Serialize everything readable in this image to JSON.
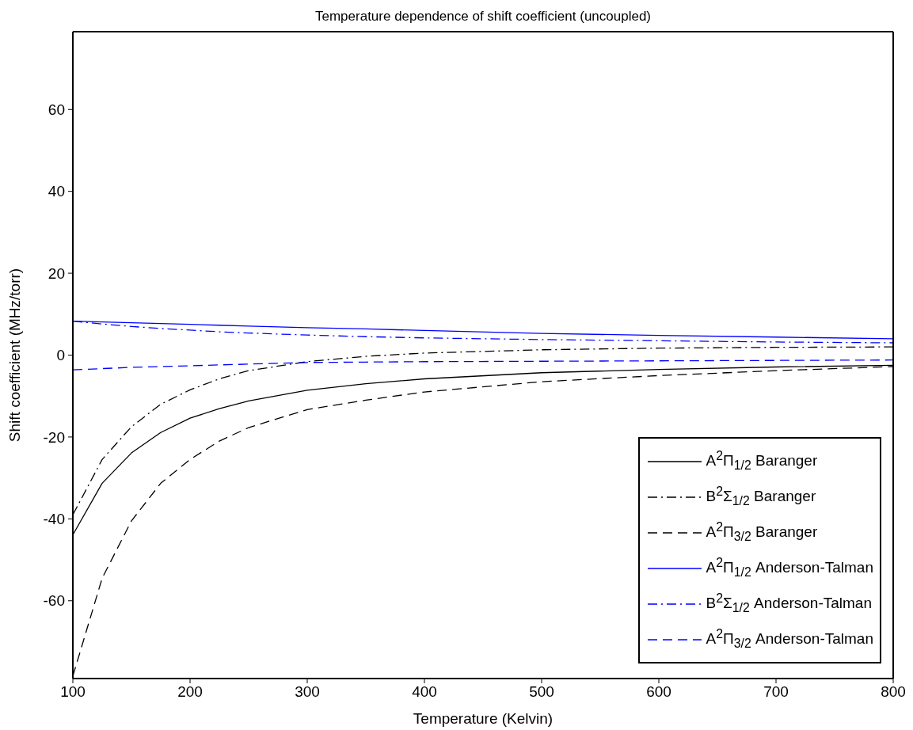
{
  "chart_data": {
    "type": "line",
    "title": "Temperature dependence of shift coefficient (uncoupled)",
    "xlabel": "Temperature (Kelvin)",
    "ylabel": "Shift coefficient (MHz/torr)",
    "x": [
      100,
      125,
      150,
      175,
      200,
      225,
      250,
      300,
      350,
      400,
      500,
      600,
      700,
      800
    ],
    "series": [
      {
        "name": "A$^{2}$Π$_{1/2}$ Baranger",
        "color": "#000000",
        "line_style": "solid",
        "values": [
          -43.9,
          -31.3,
          -23.9,
          -18.9,
          -15.4,
          -13.1,
          -11.2,
          -8.6,
          -7.0,
          -5.8,
          -4.3,
          -3.5,
          -2.9,
          -2.5
        ]
      },
      {
        "name": "B$^{2}$Σ$_{1/2}$ Baranger",
        "color": "#000000",
        "line_style": "dashdot",
        "values": [
          -39.0,
          -25.5,
          -17.5,
          -12.0,
          -8.5,
          -5.8,
          -3.8,
          -1.6,
          -0.3,
          0.5,
          1.3,
          1.7,
          1.9,
          2.0
        ]
      },
      {
        "name": "A$^{2}$Π$_{3/2}$ Baranger",
        "color": "#000000",
        "line_style": "dashed",
        "values": [
          -78.4,
          -54.5,
          -40.5,
          -31.3,
          -25.5,
          -21.0,
          -17.7,
          -13.3,
          -11.0,
          -9.0,
          -6.5,
          -5.0,
          -3.8,
          -2.8
        ]
      },
      {
        "name": "A$^{2}$Π$_{1/2}$ Anderson-Talman",
        "color": "#0000ff",
        "line_style": "solid",
        "values": [
          8.3,
          8.1,
          7.9,
          7.7,
          7.5,
          7.3,
          7.1,
          6.7,
          6.4,
          6.0,
          5.3,
          4.8,
          4.4,
          4.0
        ]
      },
      {
        "name": "B$^{2}$Σ$_{1/2}$ Anderson-Talman",
        "color": "#0000ff",
        "line_style": "dashdot",
        "values": [
          8.3,
          7.6,
          7.0,
          6.5,
          6.1,
          5.7,
          5.4,
          4.9,
          4.5,
          4.2,
          3.8,
          3.5,
          3.2,
          3.0
        ]
      },
      {
        "name": "A$^{2}$Π$_{3/2}$ Anderson-Talman",
        "color": "#0000ff",
        "line_style": "dashed",
        "values": [
          -3.6,
          -3.3,
          -3.0,
          -2.8,
          -2.6,
          -2.4,
          -2.2,
          -1.8,
          -1.7,
          -1.6,
          -1.5,
          -1.4,
          -1.3,
          -1.2
        ]
      }
    ],
    "xlim": [
      100,
      800
    ],
    "xticks": [
      100,
      200,
      300,
      400,
      500,
      600,
      700,
      800
    ],
    "ylim": [
      -79,
      79
    ],
    "yticks": [
      -60,
      -40,
      -20,
      0,
      20,
      40,
      60
    ],
    "legend": "bottom right"
  }
}
